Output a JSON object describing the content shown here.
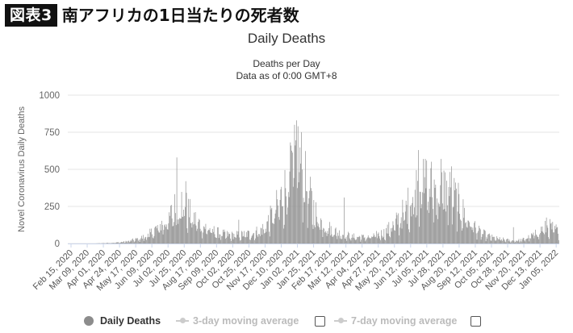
{
  "figure": {
    "tag": "図表3",
    "title": "南アフリカの1日当たりの死者数"
  },
  "chart_data": {
    "type": "bar",
    "title": "Daily Deaths",
    "subtitle_lines": [
      "Deaths per Day",
      "Data as of 0:00 GMT+8"
    ],
    "ylabel": "Novel Coronavirus Daily Deaths",
    "xlabel": "",
    "ylim": [
      0,
      1000
    ],
    "yticks": [
      0,
      250,
      500,
      750,
      1000
    ],
    "grid": true,
    "x_start": "2020-02-15",
    "x_end": "2022-01-28",
    "xtick_labels": [
      "Feb 15, 2020",
      "Mar 09, 2020",
      "Apr 01, 2020",
      "Apr 24, 2020",
      "May 17, 2020",
      "Jun 09, 2020",
      "Jul 02, 2020",
      "Jul 25, 2020",
      "Aug 17, 2020",
      "Sep 09, 2020",
      "Oct 02, 2020",
      "Oct 25, 2020",
      "Nov 17, 2020",
      "Dec 10, 2020",
      "Jan 02, 2021",
      "Jan 25, 2021",
      "Feb 17, 2021",
      "Mar 12, 2021",
      "Apr 04, 2021",
      "Apr 27, 2021",
      "May 20, 2021",
      "Jun 12, 2021",
      "Jul 05, 2021",
      "Jul 28, 2021",
      "Aug 20, 2021",
      "Sep 12, 2021",
      "Oct 05, 2021",
      "Oct 28, 2021",
      "Nov 20, 2021",
      "Dec 13, 2021",
      "Jan 05, 2022"
    ],
    "series": [
      {
        "name": "Daily Deaths",
        "color": "#8c8c8c",
        "keyframes": [
          [
            "2020-02-15",
            0
          ],
          [
            "2020-03-25",
            0
          ],
          [
            "2020-04-08",
            3
          ],
          [
            "2020-04-24",
            6
          ],
          [
            "2020-05-10",
            14
          ],
          [
            "2020-05-24",
            30
          ],
          [
            "2020-06-09",
            55
          ],
          [
            "2020-06-25",
            120
          ],
          [
            "2020-07-10",
            180
          ],
          [
            "2020-07-18",
            250
          ],
          [
            "2020-07-25",
            300
          ],
          [
            "2020-08-01",
            290
          ],
          [
            "2020-08-12",
            200
          ],
          [
            "2020-08-25",
            140
          ],
          [
            "2020-09-09",
            100
          ],
          [
            "2020-09-25",
            70
          ],
          [
            "2020-10-10",
            60
          ],
          [
            "2020-10-25",
            65
          ],
          [
            "2020-11-10",
            75
          ],
          [
            "2020-11-25",
            110
          ],
          [
            "2020-12-10",
            220
          ],
          [
            "2020-12-25",
            380
          ],
          [
            "2021-01-05",
            520
          ],
          [
            "2021-01-12",
            660
          ],
          [
            "2021-01-20",
            560
          ],
          [
            "2021-01-28",
            380
          ],
          [
            "2021-02-08",
            230
          ],
          [
            "2021-02-17",
            160
          ],
          [
            "2021-03-01",
            110
          ],
          [
            "2021-03-15",
            75
          ],
          [
            "2021-04-04",
            50
          ],
          [
            "2021-04-27",
            45
          ],
          [
            "2021-05-20",
            80
          ],
          [
            "2021-06-05",
            150
          ],
          [
            "2021-06-20",
            250
          ],
          [
            "2021-07-01",
            360
          ],
          [
            "2021-07-12",
            460
          ],
          [
            "2021-07-22",
            430
          ],
          [
            "2021-08-05",
            400
          ],
          [
            "2021-08-20",
            390
          ],
          [
            "2021-09-01",
            320
          ],
          [
            "2021-09-12",
            220
          ],
          [
            "2021-09-25",
            140
          ],
          [
            "2021-10-05",
            80
          ],
          [
            "2021-10-25",
            40
          ],
          [
            "2021-11-20",
            20
          ],
          [
            "2021-12-05",
            25
          ],
          [
            "2021-12-20",
            55
          ],
          [
            "2022-01-05",
            110
          ],
          [
            "2022-01-15",
            120
          ],
          [
            "2022-01-28",
            90
          ]
        ],
        "spikes": [
          [
            "2020-07-22",
            580
          ],
          [
            "2020-08-04",
            420
          ],
          [
            "2020-10-20",
            160
          ],
          [
            "2021-01-04",
            660
          ],
          [
            "2021-01-09",
            800
          ],
          [
            "2021-01-12",
            830
          ],
          [
            "2021-01-14",
            790
          ],
          [
            "2021-03-22",
            310
          ],
          [
            "2021-07-08",
            630
          ],
          [
            "2021-07-15",
            570
          ],
          [
            "2021-08-10",
            570
          ],
          [
            "2021-08-25",
            520
          ],
          [
            "2021-11-23",
            110
          ],
          [
            "2022-01-10",
            175
          ]
        ]
      },
      {
        "name": "3-day moving average",
        "visible": false
      },
      {
        "name": "7-day moving average",
        "visible": false
      }
    ],
    "legend_position": "bottom"
  }
}
